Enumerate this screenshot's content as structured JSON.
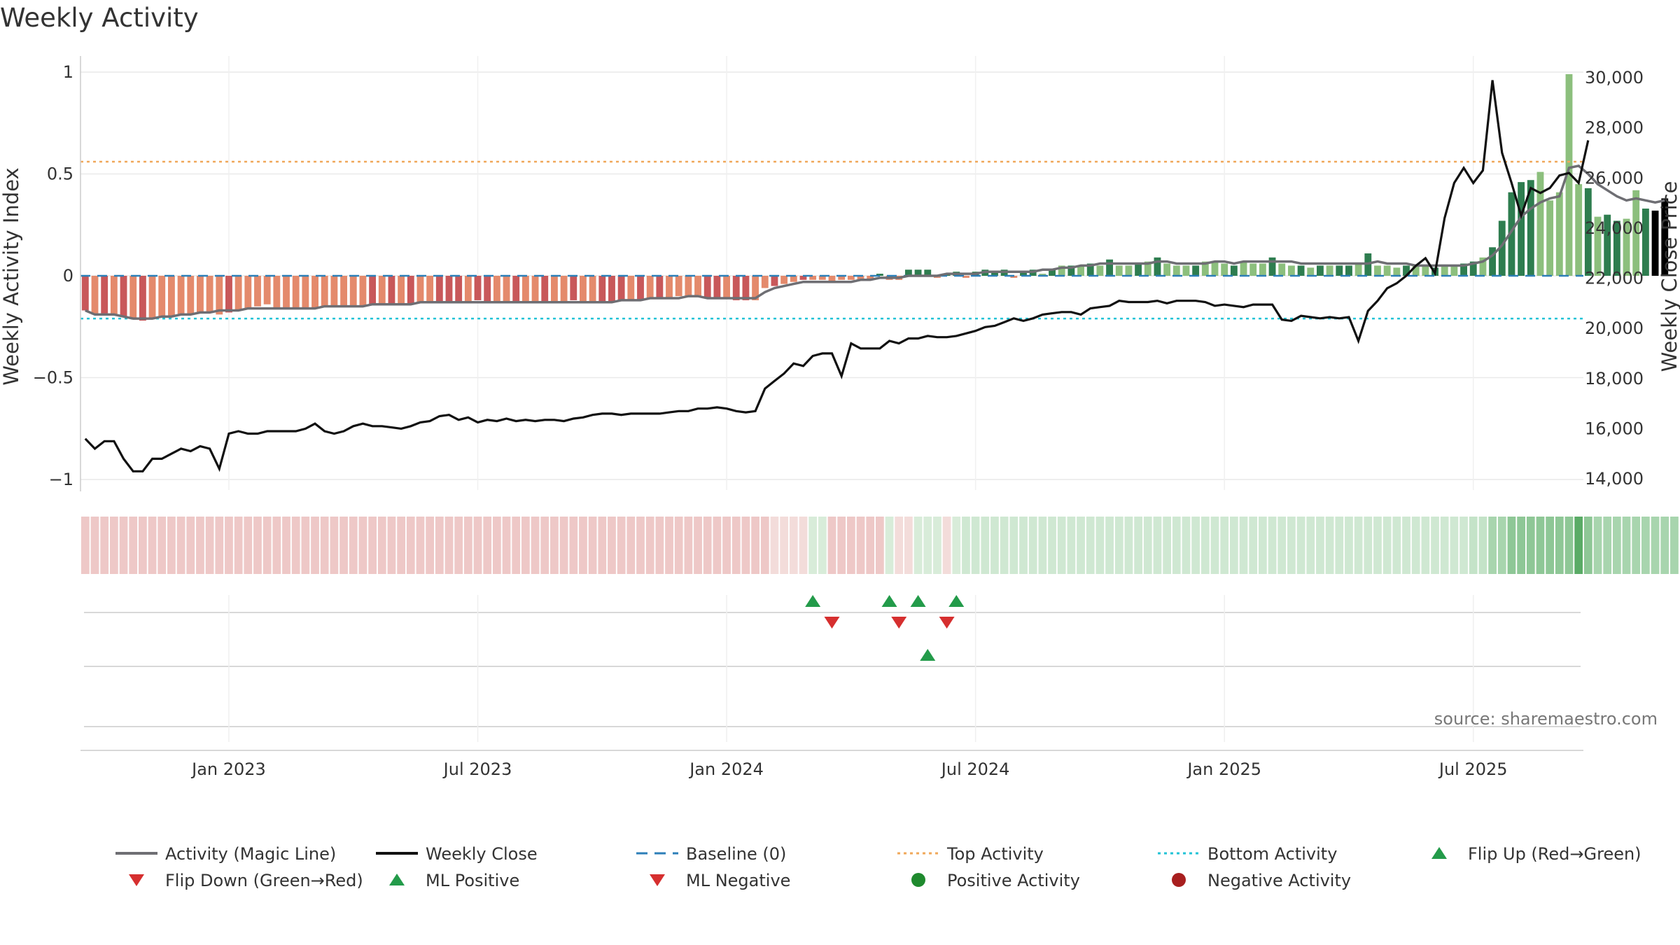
{
  "chart_data": {
    "type": "bar",
    "title": "Weekly Activity",
    "ylabel": "Weekly Activity Index",
    "y2label": "Weekly Close Price",
    "ylim": [
      -1.1,
      1.1
    ],
    "y2lim": [
      12920,
      31050
    ],
    "yticks": [
      {
        "v": 1,
        "label": "1"
      },
      {
        "v": 0.5,
        "label": "0.5"
      },
      {
        "v": 0,
        "label": "0"
      },
      {
        "v": -0.5,
        "label": "−0.5"
      },
      {
        "v": -1,
        "label": "−1"
      }
    ],
    "y2ticks": [
      {
        "v": 30000,
        "label": "30,000"
      },
      {
        "v": 28000,
        "label": "28,000"
      },
      {
        "v": 26000,
        "label": "26,000"
      },
      {
        "v": 24000,
        "label": "24,000"
      },
      {
        "v": 22000,
        "label": "22,000"
      },
      {
        "v": 20000,
        "label": "20,000"
      },
      {
        "v": 18000,
        "label": "18,000"
      },
      {
        "v": 16000,
        "label": "16,000"
      },
      {
        "v": 14000,
        "label": "14,000"
      }
    ],
    "xticks": [
      {
        "week": 15,
        "label": "Jan 2023"
      },
      {
        "week": 41,
        "label": "Jul 2023"
      },
      {
        "week": 67,
        "label": "Jan 2024"
      },
      {
        "week": 93,
        "label": "Jul 2024"
      },
      {
        "week": 119,
        "label": "Jan 2025"
      },
      {
        "week": 145,
        "label": "Jul 2025"
      }
    ],
    "top_activity": 0.56,
    "bottom_activity": -0.21,
    "baseline": 0,
    "weeks": 157,
    "activity": [
      -0.17,
      -0.19,
      -0.19,
      -0.19,
      -0.2,
      -0.21,
      -0.22,
      -0.21,
      -0.2,
      -0.2,
      -0.19,
      -0.19,
      -0.18,
      -0.18,
      -0.19,
      -0.18,
      -0.17,
      -0.16,
      -0.15,
      -0.14,
      -0.16,
      -0.16,
      -0.16,
      -0.16,
      -0.16,
      -0.15,
      -0.15,
      -0.15,
      -0.15,
      -0.15,
      -0.14,
      -0.14,
      -0.14,
      -0.14,
      -0.14,
      -0.13,
      -0.13,
      -0.13,
      -0.13,
      -0.13,
      -0.13,
      -0.12,
      -0.13,
      -0.13,
      -0.13,
      -0.13,
      -0.13,
      -0.13,
      -0.13,
      -0.13,
      -0.13,
      -0.12,
      -0.13,
      -0.13,
      -0.13,
      -0.13,
      -0.12,
      -0.12,
      -0.12,
      -0.11,
      -0.11,
      -0.11,
      -0.1,
      -0.1,
      -0.1,
      -0.11,
      -0.11,
      -0.11,
      -0.12,
      -0.12,
      -0.12,
      -0.06,
      -0.05,
      -0.04,
      -0.03,
      -0.02,
      -0.02,
      -0.02,
      -0.03,
      -0.02,
      -0.02,
      -0.02,
      -0.02,
      0.01,
      -0.02,
      -0.02,
      0.03,
      0.03,
      0.03,
      -0.01,
      0.01,
      0.02,
      -0.01,
      0.02,
      0.03,
      0.02,
      0.03,
      -0.01,
      0.02,
      0.03,
      0.01,
      0.03,
      0.05,
      0.05,
      0.05,
      0.06,
      0.05,
      0.08,
      0.05,
      0.05,
      0.06,
      0.07,
      0.09,
      0.06,
      0.05,
      0.05,
      0.05,
      0.07,
      0.07,
      0.06,
      0.05,
      0.07,
      0.06,
      0.06,
      0.09,
      0.06,
      0.05,
      0.05,
      0.04,
      0.05,
      0.05,
      0.05,
      0.05,
      0.06,
      0.11,
      0.05,
      0.05,
      0.04,
      0.05,
      0.05,
      0.05,
      0.04,
      0.05,
      0.05,
      0.06,
      0.07,
      0.09,
      0.14,
      0.27,
      0.41,
      0.46,
      0.47,
      0.51,
      0.37,
      0.41,
      0.99,
      0.45,
      0.43,
      0.29,
      0.3,
      0.27,
      0.28,
      0.42,
      0.33,
      0.32,
      0.38
    ],
    "activity_colors": [
      "#c8585a",
      "#e48a6c",
      "#c8585a",
      "#e48a6c",
      "#c8585a",
      "#e48a6c",
      "#c8585a",
      "#e48a6c",
      "#e48a6c",
      "#e48a6c",
      "#e48a6c",
      "#e48a6c",
      "#e48a6c",
      "#e48a6c",
      "#e48a6c",
      "#c8585a",
      "#e48a6c",
      "#e48a6c",
      "#e48a6c",
      "#e48a6c",
      "#e48a6c",
      "#e48a6c",
      "#e48a6c",
      "#e48a6c",
      "#e48a6c",
      "#e48a6c",
      "#e48a6c",
      "#e48a6c",
      "#e48a6c",
      "#e48a6c",
      "#c8585a",
      "#e48a6c",
      "#c8585a",
      "#e48a6c",
      "#c8585a",
      "#e48a6c",
      "#e48a6c",
      "#c8585a",
      "#c8585a",
      "#c8585a",
      "#e48a6c",
      "#c8585a",
      "#c8585a",
      "#e48a6c",
      "#e48a6c",
      "#c8585a",
      "#e48a6c",
      "#e48a6c",
      "#c8585a",
      "#e48a6c",
      "#e48a6c",
      "#c8585a",
      "#e48a6c",
      "#e48a6c",
      "#c8585a",
      "#c8585a",
      "#c8585a",
      "#e48a6c",
      "#c8585a",
      "#e48a6c",
      "#c8585a",
      "#e48a6c",
      "#e48a6c",
      "#e48a6c",
      "#e48a6c",
      "#c8585a",
      "#c8585a",
      "#e48a6c",
      "#c8585a",
      "#c8585a",
      "#e48a6c",
      "#e48a6c",
      "#c8585a",
      "#e48a6c",
      "#e48a6c",
      "#c8585a",
      "#e48a6c",
      "#e48a6c",
      "#e48a6c",
      "#e48a6c",
      "#e48a6c",
      "#e48a6c",
      "#e48a6c",
      "#2e7d4f",
      "#e48a6c",
      "#e48a6c",
      "#2e7d4f",
      "#2e7d4f",
      "#2e7d4f",
      "#e48a6c",
      "#2e7d4f",
      "#2e7d4f",
      "#e48a6c",
      "#2e7d4f",
      "#2e7d4f",
      "#2e7d4f",
      "#2e7d4f",
      "#e48a6c",
      "#2e7d4f",
      "#2e7d4f",
      "#8cbf7d",
      "#2e7d4f",
      "#8cbf7d",
      "#2e7d4f",
      "#8cbf7d",
      "#2e7d4f",
      "#8cbf7d",
      "#2e7d4f",
      "#8cbf7d",
      "#8cbf7d",
      "#2e7d4f",
      "#8cbf7d",
      "#2e7d4f",
      "#8cbf7d",
      "#8cbf7d",
      "#8cbf7d",
      "#2e7d4f",
      "#8cbf7d",
      "#8cbf7d",
      "#8cbf7d",
      "#2e7d4f",
      "#8cbf7d",
      "#8cbf7d",
      "#8cbf7d",
      "#2e7d4f",
      "#8cbf7d",
      "#8cbf7d",
      "#2e7d4f",
      "#8cbf7d",
      "#2e7d4f",
      "#8cbf7d",
      "#2e7d4f",
      "#2e7d4f",
      "#8cbf7d",
      "#2e7d4f",
      "#8cbf7d",
      "#8cbf7d",
      "#8cbf7d",
      "#2e7d4f",
      "#8cbf7d",
      "#8cbf7d",
      "#2e7d4f",
      "#8cbf7d",
      "#8cbf7d",
      "#2e7d4f",
      "#2e7d4f",
      "#8cbf7d",
      "#2e7d4f",
      "#2e7d4f",
      "#2e7d4f",
      "#2e7d4f",
      "#2e7d4f",
      "#8cbf7d",
      "#8cbf7d",
      "#8cbf7d",
      "#8cbf7d",
      "#8cbf7d",
      "#2e7d4f",
      "#8cbf7d",
      "#2e7d4f",
      "#2e7d4f",
      "#8cbf7d",
      "#8cbf7d",
      "#2e7d4f"
    ],
    "magic_line": [
      -0.17,
      -0.19,
      -0.19,
      -0.19,
      -0.2,
      -0.21,
      -0.21,
      -0.21,
      -0.2,
      -0.2,
      -0.19,
      -0.19,
      -0.18,
      -0.18,
      -0.17,
      -0.17,
      -0.17,
      -0.16,
      -0.16,
      -0.16,
      -0.16,
      -0.16,
      -0.16,
      -0.16,
      -0.16,
      -0.15,
      -0.15,
      -0.15,
      -0.15,
      -0.15,
      -0.14,
      -0.14,
      -0.14,
      -0.14,
      -0.14,
      -0.13,
      -0.13,
      -0.13,
      -0.13,
      -0.13,
      -0.13,
      -0.13,
      -0.13,
      -0.13,
      -0.13,
      -0.13,
      -0.13,
      -0.13,
      -0.13,
      -0.13,
      -0.13,
      -0.13,
      -0.13,
      -0.13,
      -0.13,
      -0.13,
      -0.12,
      -0.12,
      -0.12,
      -0.11,
      -0.11,
      -0.11,
      -0.11,
      -0.1,
      -0.1,
      -0.11,
      -0.11,
      -0.11,
      -0.11,
      -0.11,
      -0.11,
      -0.08,
      -0.06,
      -0.05,
      -0.04,
      -0.03,
      -0.03,
      -0.03,
      -0.03,
      -0.03,
      -0.03,
      -0.02,
      -0.02,
      -0.01,
      -0.01,
      -0.01,
      0,
      0,
      0,
      0,
      0.01,
      0.01,
      0.01,
      0.01,
      0.02,
      0.02,
      0.02,
      0.02,
      0.02,
      0.02,
      0.03,
      0.03,
      0.04,
      0.04,
      0.05,
      0.05,
      0.06,
      0.06,
      0.06,
      0.06,
      0.06,
      0.06,
      0.07,
      0.07,
      0.06,
      0.06,
      0.06,
      0.06,
      0.07,
      0.07,
      0.06,
      0.07,
      0.07,
      0.07,
      0.07,
      0.07,
      0.07,
      0.06,
      0.06,
      0.06,
      0.06,
      0.06,
      0.06,
      0.06,
      0.06,
      0.07,
      0.06,
      0.06,
      0.06,
      0.05,
      0.05,
      0.05,
      0.05,
      0.05,
      0.05,
      0.06,
      0.07,
      0.1,
      0.15,
      0.22,
      0.29,
      0.33,
      0.36,
      0.38,
      0.39,
      0.53,
      0.54,
      0.5,
      0.45,
      0.42,
      0.39,
      0.37,
      0.38,
      0.37,
      0.36,
      0.37
    ],
    "weekly_close": [
      15600,
      15200,
      15500,
      15500,
      14800,
      14300,
      14300,
      14800,
      14800,
      15000,
      15200,
      15100,
      15300,
      15200,
      14400,
      15800,
      15900,
      15800,
      15800,
      15900,
      15900,
      15900,
      15900,
      16000,
      16200,
      15900,
      15800,
      15900,
      16100,
      16200,
      16100,
      16100,
      16050,
      16000,
      16100,
      16250,
      16300,
      16500,
      16550,
      16350,
      16450,
      16250,
      16350,
      16300,
      16400,
      16300,
      16350,
      16300,
      16350,
      16350,
      16300,
      16400,
      16450,
      16550,
      16600,
      16600,
      16550,
      16600,
      16600,
      16600,
      16600,
      16650,
      16700,
      16700,
      16800,
      16800,
      16850,
      16800,
      16700,
      16650,
      16700,
      17600,
      17900,
      18200,
      18600,
      18500,
      18900,
      19000,
      19000,
      18100,
      19400,
      19200,
      19200,
      19200,
      19500,
      19400,
      19600,
      19600,
      19700,
      19650,
      19650,
      19700,
      19800,
      19900,
      20050,
      20100,
      20250,
      20400,
      20300,
      20400,
      20550,
      20600,
      20650,
      20650,
      20550,
      20800,
      20850,
      20900,
      21100,
      21050,
      21050,
      21050,
      21100,
      21000,
      21100,
      21100,
      21100,
      21050,
      20900,
      20950,
      20900,
      20850,
      20950,
      20950,
      20950,
      20350,
      20300,
      20500,
      20450,
      20400,
      20450,
      20400,
      20450,
      19500,
      20700,
      21100,
      21600,
      21800,
      22100,
      22500,
      22800,
      22200,
      24400,
      25800,
      26400,
      25800,
      26300,
      29900,
      27000,
      25800,
      24500,
      25600,
      25400,
      25600,
      26100,
      26200,
      25800,
      27500
    ],
    "state_strip": [
      "#eec8c7",
      "#eec8c7",
      "#eec8c7",
      "#eec8c7",
      "#eec8c7",
      "#eec8c7",
      "#eec8c7",
      "#eec8c7",
      "#eec8c7",
      "#eec8c7",
      "#eec8c7",
      "#eec8c7",
      "#eec8c7",
      "#eec8c7",
      "#eec8c7",
      "#eec8c7",
      "#eec8c7",
      "#eec8c7",
      "#eec8c7",
      "#eec8c7",
      "#eec8c7",
      "#eec8c7",
      "#eec8c7",
      "#eec8c7",
      "#eec8c7",
      "#eec8c7",
      "#eec8c7",
      "#eec8c7",
      "#eec8c7",
      "#eec8c7",
      "#eec8c7",
      "#eec8c7",
      "#eec8c7",
      "#eec8c7",
      "#eec8c7",
      "#eec8c7",
      "#eec8c7",
      "#eec8c7",
      "#eec8c7",
      "#eec8c7",
      "#eec8c7",
      "#eec8c7",
      "#eec8c7",
      "#eec8c7",
      "#eec8c7",
      "#eec8c7",
      "#eec8c7",
      "#eec8c7",
      "#eec8c7",
      "#eec8c7",
      "#eec8c7",
      "#eec8c7",
      "#eec8c7",
      "#eec8c7",
      "#eec8c7",
      "#eec8c7",
      "#eec8c7",
      "#eec8c7",
      "#eec8c7",
      "#eec8c7",
      "#eec8c7",
      "#eec8c7",
      "#eec8c7",
      "#eec8c7",
      "#eec8c7",
      "#eec8c7",
      "#eec8c7",
      "#eec8c7",
      "#eec8c7",
      "#eec8c7",
      "#eec8c7",
      "#eec8c7",
      "#f3dcda",
      "#f3dcda",
      "#f3dcda",
      "#f3dcda",
      "#d8ecd9",
      "#d8ecd9",
      "#eec8c7",
      "#eec8c7",
      "#eec8c7",
      "#eec8c7",
      "#eec8c7",
      "#eec8c7",
      "#d8ecd9",
      "#f3dcda",
      "#f3dcda",
      "#d8ecd9",
      "#d8ecd9",
      "#d8ecd9",
      "#f3dcda",
      "#d8ecd9",
      "#cfe8d2",
      "#cfe8d2",
      "#cfe8d2",
      "#cfe8d2",
      "#cfe8d2",
      "#cfe8d2",
      "#cfe8d2",
      "#cfe8d2",
      "#cfe8d2",
      "#cfe8d2",
      "#cfe8d2",
      "#cfe8d2",
      "#cfe8d2",
      "#cfe8d2",
      "#cfe8d2",
      "#cfe8d2",
      "#cfe8d2",
      "#cfe8d2",
      "#cfe8d2",
      "#cfe8d2",
      "#cfe8d2",
      "#cfe8d2",
      "#cfe8d2",
      "#cfe8d2",
      "#cfe8d2",
      "#cfe8d2",
      "#cfe8d2",
      "#cfe8d2",
      "#cfe8d2",
      "#cfe8d2",
      "#cfe8d2",
      "#cfe8d2",
      "#cfe8d2",
      "#cfe8d2",
      "#cfe8d2",
      "#cfe8d2",
      "#cfe8d2",
      "#cfe8d2",
      "#cfe8d2",
      "#cfe8d2",
      "#cfe8d2",
      "#cfe8d2",
      "#cfe8d2",
      "#cfe8d2",
      "#cfe8d2",
      "#cfe8d2",
      "#cfe8d2",
      "#cfe8d2",
      "#cfe8d2",
      "#cfe8d2",
      "#cfe8d2",
      "#cfe8d2",
      "#cfe8d2",
      "#c4e3c8",
      "#c4e3c8",
      "#a8d5ae",
      "#a8d5ae",
      "#8ec796",
      "#8ec796",
      "#8ec796",
      "#8ec796",
      "#8ec796",
      "#8ec796",
      "#8ec796",
      "#5aab66",
      "#8ec796",
      "#a8d5ae",
      "#a8d5ae",
      "#a8d5ae",
      "#a8d5ae",
      "#a8d5ae",
      "#a8d5ae",
      "#a8d5ae",
      "#a8d5ae",
      "#a8d5ae"
    ],
    "events": {
      "flip_up": [
        76,
        84,
        87,
        91
      ],
      "flip_down": [
        78,
        85,
        90
      ],
      "ml_positive": [
        88
      ],
      "ml_negative": [],
      "positive_activity": [],
      "negative_activity": []
    },
    "source": "source: sharemaestro.com",
    "legend": [
      {
        "label": "Activity (Magic Line)",
        "kind": "line",
        "color": "#6e6e73"
      },
      {
        "label": "Weekly Close",
        "kind": "line",
        "color": "#111111"
      },
      {
        "label": "Baseline (0)",
        "kind": "dash",
        "color": "#2c7fb8"
      },
      {
        "label": "Top Activity",
        "kind": "dot",
        "color": "#f0a85a"
      },
      {
        "label": "Bottom Activity",
        "kind": "dot",
        "color": "#22c3d6"
      },
      {
        "label": "Flip Up (Red→Green)",
        "kind": "up",
        "color": "#239b4a"
      },
      {
        "label": "Flip Down (Green→Red)",
        "kind": "down",
        "color": "#d62f2f"
      },
      {
        "label": "ML Positive",
        "kind": "up",
        "color": "#239b4a"
      },
      {
        "label": "ML Negative",
        "kind": "down",
        "color": "#d62f2f"
      },
      {
        "label": "Positive Activity",
        "kind": "circle",
        "color": "#1f8a2e"
      },
      {
        "label": "Negative Activity",
        "kind": "circle",
        "color": "#a81f1f"
      }
    ]
  }
}
